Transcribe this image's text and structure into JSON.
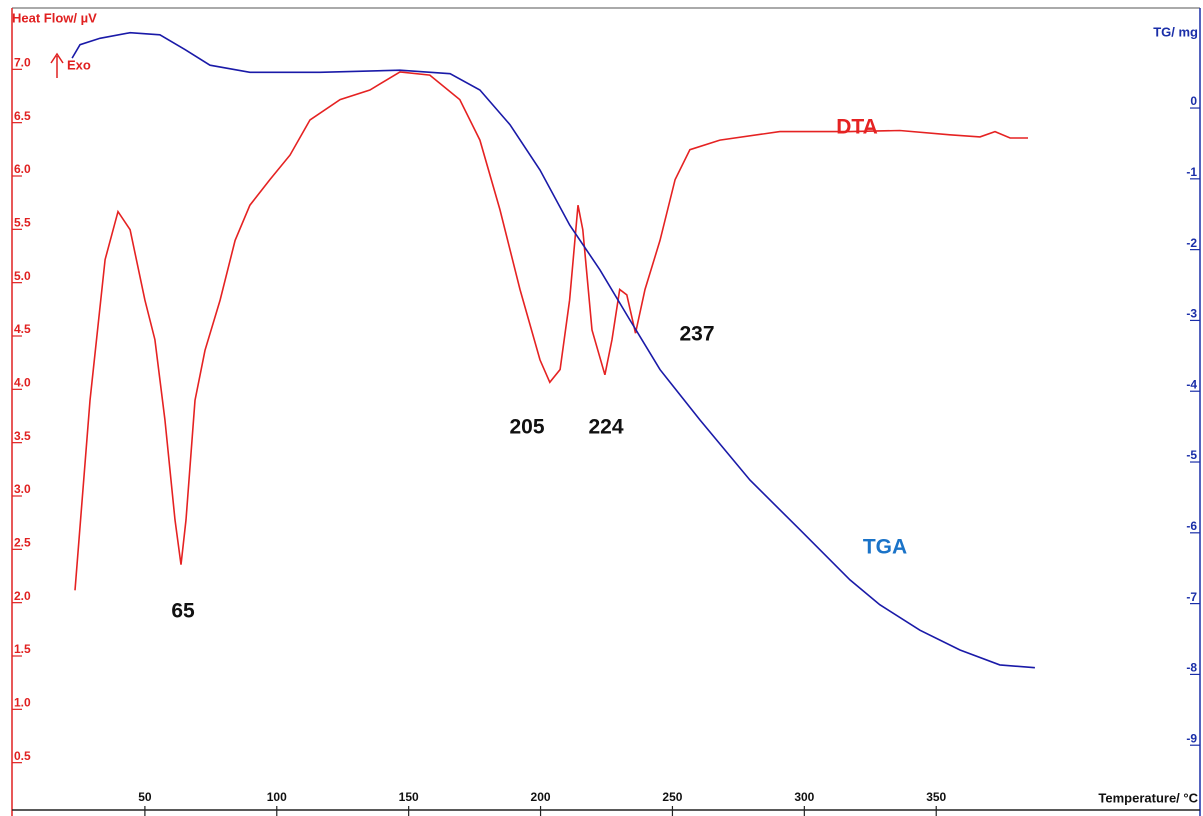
{
  "chart_data": {
    "type": "line",
    "y_label": "Heat Flow/ µV",
    "y2_label": "TG/ mg",
    "x_label": "Temperature/ °C",
    "exo_label": "Exo",
    "xlim": [
      0,
      450
    ],
    "xticks": [
      50,
      100,
      150,
      200,
      250,
      300,
      350
    ],
    "ylim": [
      0,
      7.5
    ],
    "yticks": [
      {
        "value": 0.5,
        "label": "0.5"
      },
      {
        "value": 1,
        "label": "1.0"
      },
      {
        "value": 1.5,
        "label": "1.5"
      },
      {
        "value": 2,
        "label": "2.0"
      },
      {
        "value": 2.5,
        "label": "2.5"
      },
      {
        "value": 3,
        "label": "3.0"
      },
      {
        "value": 3.5,
        "label": "3.5"
      },
      {
        "value": 4,
        "label": "4.0"
      },
      {
        "value": 4.5,
        "label": "4.5"
      },
      {
        "value": 5,
        "label": "5.0"
      },
      {
        "value": 5.5,
        "label": "5.5"
      },
      {
        "value": 6,
        "label": "6.0"
      },
      {
        "value": 6.5,
        "label": "6.5"
      },
      {
        "value": 7,
        "label": "7.0"
      }
    ],
    "y_color": "#e02020",
    "y2lim": [
      -10,
      1.3
    ],
    "y2ticks": [
      0,
      -1,
      -2,
      -3,
      -4,
      -5,
      -6,
      -7,
      -8,
      -9
    ],
    "y2_color": "#1a2ea8",
    "series": [
      {
        "name": "DTA",
        "color": "#e52222",
        "label_color": "#e52222",
        "x": [
          23.5,
          29.2,
          34.9,
          39.8,
          44.4,
          50,
          53.8,
          57.6,
          61.4,
          63.7,
          65.6,
          69,
          72.8,
          78.5,
          84.2,
          89.8,
          97.4,
          105,
          112.6,
          124,
          135.3,
          146.7,
          158,
          169.4,
          177,
          184.6,
          192.2,
          199.8,
          203.5,
          207.4,
          211,
          214.2,
          216,
          219.5,
          224.4,
          227.1,
          230,
          232.7,
          236,
          239.6,
          245.3,
          251,
          256.6,
          268,
          290.7,
          317.3,
          336.2,
          355.2,
          366.6,
          372.3,
          378,
          384.8
        ],
        "values": [
          2.06,
          3.84,
          5.16,
          5.61,
          5.44,
          4.78,
          4.41,
          3.66,
          2.72,
          2.3,
          2.72,
          3.84,
          4.31,
          4.78,
          5.34,
          5.67,
          5.91,
          6.14,
          6.47,
          6.66,
          6.75,
          6.92,
          6.89,
          6.66,
          6.28,
          5.63,
          4.88,
          4.22,
          4.01,
          4.13,
          4.78,
          5.67,
          5.44,
          4.5,
          4.08,
          4.41,
          4.88,
          4.83,
          4.47,
          4.88,
          5.34,
          5.91,
          6.19,
          6.28,
          6.36,
          6.36,
          6.37,
          6.33,
          6.31,
          6.36,
          6.3,
          6.3
        ]
      },
      {
        "name": "TGA",
        "color": "#1a1aa8",
        "label_color": "#1a73c8",
        "axis": "y2",
        "x": [
          22.4,
          25.4,
          33,
          44.4,
          55.7,
          65.2,
          74.7,
          89.8,
          116.4,
          146.7,
          165.7,
          177,
          188.4,
          199.8,
          211.1,
          222.5,
          233.9,
          245.3,
          260.4,
          279.4,
          298.3,
          317.3,
          328.6,
          343.8,
          359,
          374.1,
          387.4
        ],
        "values": [
          0.62,
          0.81,
          0.9,
          0.98,
          0.95,
          0.74,
          0.52,
          0.42,
          0.42,
          0.45,
          0.4,
          0.17,
          -0.32,
          -0.96,
          -1.74,
          -2.37,
          -3.08,
          -3.78,
          -4.49,
          -5.34,
          -6.04,
          -6.75,
          -7.1,
          -7.46,
          -7.74,
          -7.95,
          -7.99
        ]
      }
    ],
    "annotations": [
      {
        "text": "65"
      },
      {
        "text": "205"
      },
      {
        "text": "224"
      },
      {
        "text": "237"
      }
    ]
  }
}
